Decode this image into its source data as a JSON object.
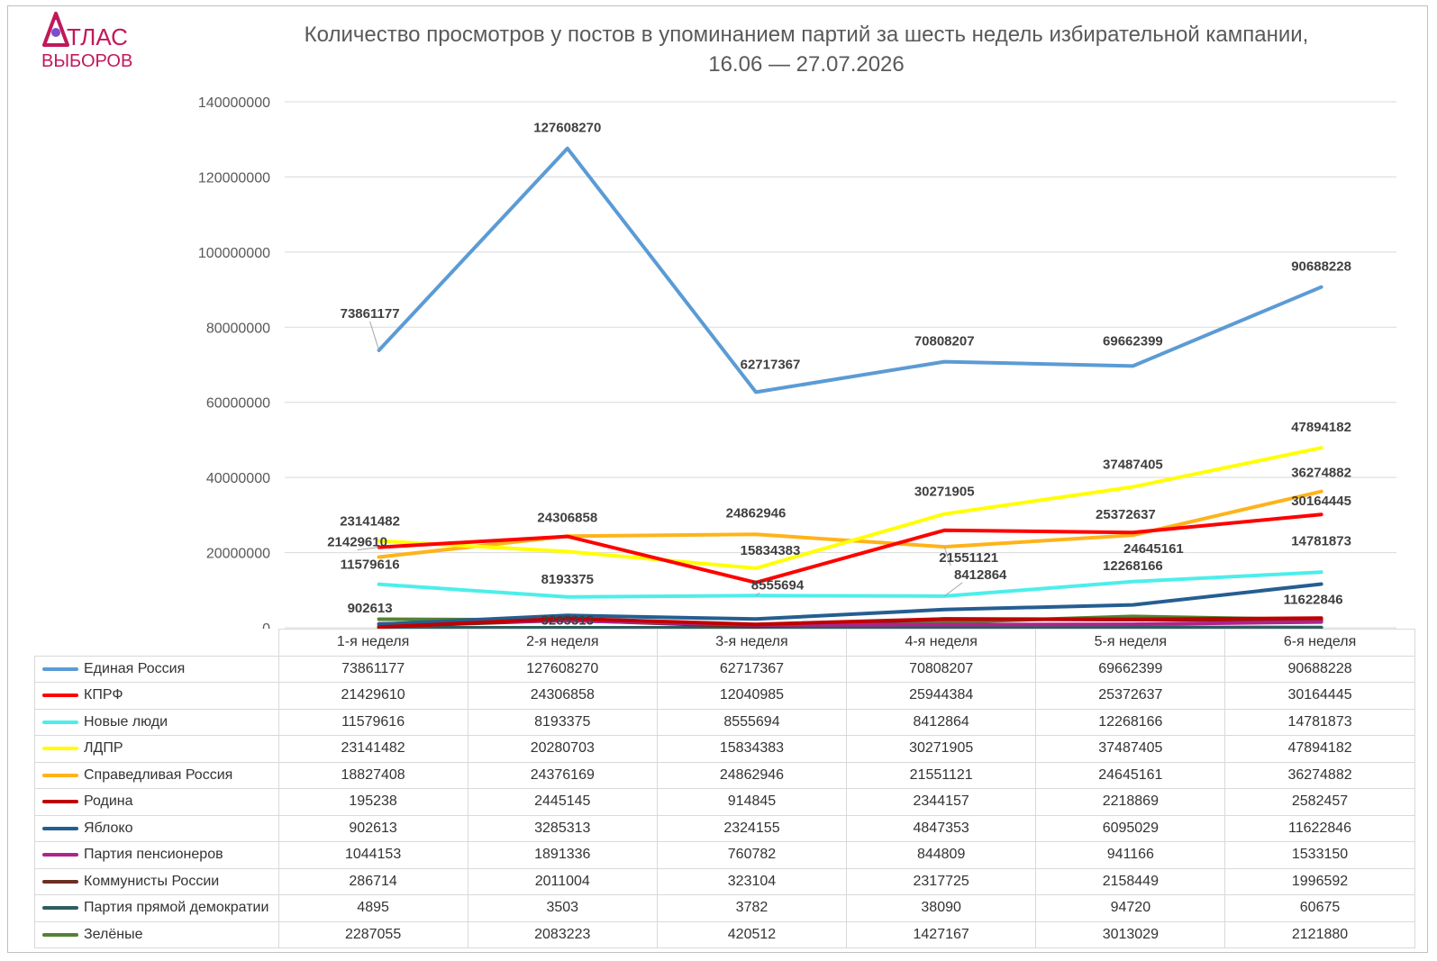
{
  "title_line1": "Количество просмотров у постов в упоминанием партий за шесть недель избирательной кампании,",
  "title_line2": "16.06 — 27.07.2026",
  "logo": {
    "line1": "ТЛАС",
    "line2": "ВЫБОРОВ",
    "color": "#c2185b"
  },
  "chart_data": {
    "type": "line",
    "categories": [
      "1-я неделя",
      "2-я неделя",
      "3-я неделя",
      "4-я неделя",
      "5-я неделя",
      "6-я неделя"
    ],
    "ylim": [
      0,
      140000000
    ],
    "yticks": [
      "0",
      "20000000",
      "40000000",
      "60000000",
      "80000000",
      "100000000",
      "120000000",
      "140000000"
    ],
    "grid": true,
    "legend": "table-below",
    "series": [
      {
        "name": "Единая Россия",
        "color": "#5b9bd5",
        "values": [
          73861177,
          127608270,
          62717367,
          70808207,
          69662399,
          90688228
        ],
        "labels": [
          "73861177",
          "127608270",
          "62717367",
          "70808207",
          "69662399",
          "90688228"
        ]
      },
      {
        "name": "КПРФ",
        "color": "#ff0000",
        "values": [
          21429610,
          24306858,
          12040985,
          25944384,
          25372637,
          30164445
        ],
        "labels": [
          "21429610",
          "24306858",
          "",
          "",
          "25372637",
          "30164445"
        ]
      },
      {
        "name": "Новые люди",
        "color": "#4deeea",
        "values": [
          11579616,
          8193375,
          8555694,
          8412864,
          12268166,
          14781873
        ],
        "labels": [
          "11579616",
          "8193375",
          "8555694",
          "8412864",
          "12268166",
          "14781873"
        ]
      },
      {
        "name": "ЛДПР",
        "color": "#ffff00",
        "values": [
          23141482,
          20280703,
          15834383,
          30271905,
          37487405,
          47894182
        ],
        "labels": [
          "23141482",
          "",
          "15834383",
          "30271905",
          "37487405",
          "47894182"
        ]
      },
      {
        "name": "Справедливая Россия",
        "color": "#ffb31a",
        "values": [
          18827408,
          24376169,
          24862946,
          21551121,
          24645161,
          36274882
        ],
        "labels": [
          "",
          "",
          "24862946",
          "21551121",
          "24645161",
          "36274882"
        ]
      },
      {
        "name": "Родина",
        "color": "#c00000",
        "values": [
          195238,
          2445145,
          914845,
          2344157,
          2218869,
          2582457
        ],
        "labels": []
      },
      {
        "name": "Яблоко",
        "color": "#255e91",
        "values": [
          902613,
          3285313,
          2324155,
          4847353,
          6095029,
          11622846
        ],
        "labels": [
          "902613",
          "3285313",
          "",
          "",
          "",
          "11622846"
        ]
      },
      {
        "name": "Партия пенсионеров",
        "color": "#b0238b",
        "values": [
          1044153,
          1891336,
          760782,
          844809,
          941166,
          1533150
        ],
        "labels": []
      },
      {
        "name": "Коммунисты России",
        "color": "#6b2e22",
        "values": [
          286714,
          2011004,
          323104,
          2317725,
          2158449,
          1996592
        ],
        "labels": []
      },
      {
        "name": "Партия прямой демократии",
        "color": "#2f5d62",
        "values": [
          4895,
          3503,
          3782,
          38090,
          94720,
          60675
        ],
        "labels": []
      },
      {
        "name": "Зелёные",
        "color": "#548235",
        "values": [
          2287055,
          2083223,
          420512,
          1427167,
          3013029,
          2121880
        ],
        "labels": []
      }
    ]
  }
}
